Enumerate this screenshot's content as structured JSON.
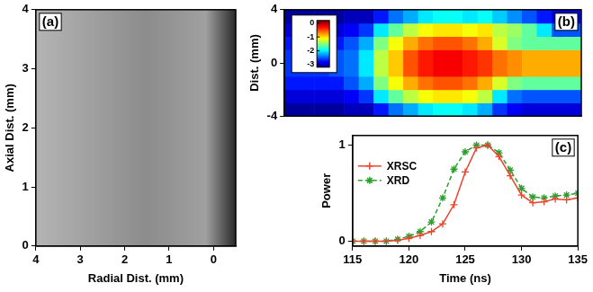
{
  "chart_data": [
    {
      "type": "image",
      "title": "(a)",
      "x_label": "Radial Dist. (mm)",
      "y_label": "Axial Dist. (mm)",
      "xlim": [
        4,
        -0.5
      ],
      "xticks": [
        4,
        3,
        2,
        1,
        0
      ],
      "ylim": [
        0,
        4
      ],
      "yticks": [
        0,
        1,
        2,
        3,
        4
      ],
      "grid": false
    },
    {
      "type": "heatmap",
      "title": "(b)",
      "y_label": "Dist. (mm)",
      "xlim": [
        115,
        135
      ],
      "ylim": [
        -4,
        4
      ],
      "yticks": [
        -4,
        0,
        4
      ],
      "tick_labels": "y",
      "grid": false,
      "x": [
        115.5,
        116.5,
        117.5,
        118.5,
        119.5,
        120.5,
        121.5,
        122.5,
        123.5,
        124.5,
        125.5,
        126.5,
        127.5,
        128.5,
        129.5,
        130.5,
        131.5,
        132.5,
        133.5,
        134.5
      ],
      "y": [
        -3.5,
        -2.5,
        -1.5,
        -0.5,
        0.5,
        1.5,
        2.5,
        3.5
      ],
      "z": [
        [
          -3.1,
          -3.1,
          -3.1,
          -3.1,
          -3.0,
          -3.0,
          -2.7,
          -2.4,
          -2.2,
          -2.0,
          -1.9,
          -1.9,
          -2.0,
          -2.2,
          -2.6,
          -2.8,
          -2.9,
          -2.9,
          -2.9,
          -2.9
        ],
        [
          -2.9,
          -2.9,
          -2.9,
          -2.9,
          -2.8,
          -2.6,
          -2.0,
          -1.6,
          -1.3,
          -1.1,
          -1.0,
          -1.0,
          -1.1,
          -1.3,
          -2.0,
          -2.4,
          -2.5,
          -2.5,
          -2.5,
          -2.5
        ],
        [
          -2.7,
          -2.7,
          -2.7,
          -2.7,
          -2.5,
          -2.2,
          -1.5,
          -1.1,
          -0.8,
          -0.6,
          -0.5,
          -0.5,
          -0.6,
          -0.8,
          -1.2,
          -1.5,
          -1.6,
          -1.6,
          -1.6,
          -1.6
        ],
        [
          -2.6,
          -2.6,
          -2.6,
          -2.5,
          -2.4,
          -2.0,
          -1.3,
          -0.9,
          -0.5,
          -0.3,
          -0.2,
          -0.2,
          -0.3,
          -0.4,
          -0.6,
          -0.7,
          -0.8,
          -0.8,
          -0.8,
          -0.8
        ],
        [
          -2.6,
          -2.6,
          -2.6,
          -2.5,
          -2.4,
          -2.0,
          -1.3,
          -0.9,
          -0.5,
          -0.3,
          -0.2,
          -0.2,
          -0.3,
          -0.4,
          -0.6,
          -0.7,
          -0.8,
          -0.8,
          -0.8,
          -0.8
        ],
        [
          -2.7,
          -2.7,
          -2.7,
          -2.7,
          -2.5,
          -2.2,
          -1.5,
          -1.1,
          -0.8,
          -0.6,
          -0.5,
          -0.5,
          -0.6,
          -0.8,
          -1.2,
          -1.5,
          -1.6,
          -1.6,
          -1.6,
          -1.6
        ],
        [
          -2.9,
          -2.9,
          -2.9,
          -2.9,
          -2.8,
          -2.6,
          -2.0,
          -1.6,
          -1.3,
          -1.1,
          -1.0,
          -1.0,
          -1.1,
          -1.0,
          -1.3,
          -1.4,
          -1.6,
          -2.0,
          -2.5,
          -2.5
        ],
        [
          -3.1,
          -3.1,
          -3.1,
          -3.1,
          -3.0,
          -3.0,
          -2.7,
          -2.4,
          -2.2,
          -2.0,
          -1.9,
          -1.9,
          -2.0,
          -1.9,
          -2.1,
          -2.3,
          -2.5,
          -2.7,
          -2.9,
          -2.9
        ]
      ],
      "colorbar": {
        "range": [
          -3.2,
          0.2
        ],
        "ticks": [
          0,
          -1,
          -2,
          -3
        ]
      }
    },
    {
      "type": "line",
      "title": "(c)",
      "x_label": "Time (ns)",
      "y_label": "Power",
      "xlim": [
        115,
        135
      ],
      "xticks": [
        115,
        120,
        125,
        130,
        135
      ],
      "ylim": [
        -0.05,
        1.1
      ],
      "yticks": [
        0,
        1
      ],
      "grid": false,
      "legend": "upper left",
      "x": [
        115,
        116,
        117,
        118,
        119,
        120,
        121,
        122,
        123,
        124,
        125,
        126,
        127,
        128,
        129,
        130,
        131,
        132,
        133,
        134,
        135
      ],
      "series": [
        {
          "name": "XRSC",
          "color": "#e8452c",
          "marker": "+",
          "line_style": "solid",
          "values": [
            0,
            0,
            0,
            0,
            0.01,
            0.03,
            0.06,
            0.1,
            0.18,
            0.38,
            0.72,
            0.97,
            1.0,
            0.88,
            0.68,
            0.48,
            0.4,
            0.41,
            0.44,
            0.43,
            0.45
          ]
        },
        {
          "name": "XRD",
          "color": "#2e9e2e",
          "marker": "*",
          "line_style": "dashed",
          "values": [
            0,
            0,
            0,
            0,
            0.02,
            0.05,
            0.1,
            0.2,
            0.45,
            0.75,
            0.93,
            1.0,
            1.0,
            0.92,
            0.74,
            0.55,
            0.46,
            0.45,
            0.47,
            0.48,
            0.5
          ]
        }
      ]
    }
  ]
}
